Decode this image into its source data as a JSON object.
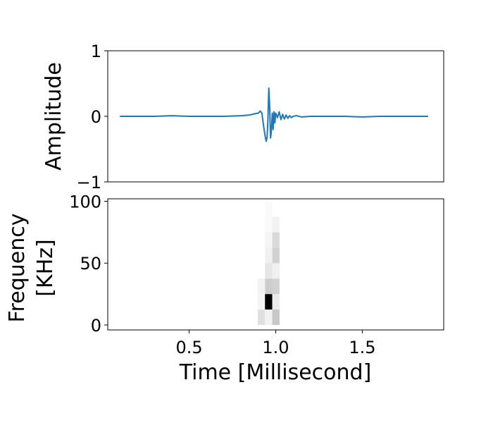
{
  "chart_data": [
    {
      "type": "line",
      "panel": "waveform",
      "title": "",
      "xlabel": "",
      "ylabel": "Amplitude",
      "xlim": [
        0.03,
        1.97
      ],
      "ylim": [
        -1,
        1
      ],
      "yticks": [
        1,
        0,
        -1
      ],
      "ytick_labels": [
        "1",
        "0",
        "−1"
      ],
      "xticks_visible": false,
      "grid": false,
      "line_color": "#1f77b4",
      "series": [
        {
          "x": [
            0.1,
            0.2,
            0.3,
            0.4,
            0.5,
            0.6,
            0.7,
            0.8,
            0.85,
            0.88,
            0.9,
            0.91,
            0.92,
            0.93,
            0.94,
            0.945,
            0.95,
            0.955,
            0.96,
            0.965,
            0.97,
            0.975,
            0.98,
            0.985,
            0.99,
            0.995,
            1.0,
            1.01,
            1.02,
            1.03,
            1.04,
            1.05,
            1.06,
            1.07,
            1.08,
            1.09,
            1.1,
            1.12,
            1.15,
            1.2,
            1.3,
            1.4,
            1.5,
            1.6,
            1.7,
            1.8,
            1.88
          ],
          "y": [
            0.0,
            0.0,
            0.0,
            0.01,
            0.0,
            0.0,
            0.0,
            0.01,
            0.02,
            0.04,
            0.05,
            0.08,
            0.05,
            -0.15,
            -0.32,
            -0.38,
            -0.32,
            -0.05,
            0.43,
            0.15,
            -0.33,
            -0.22,
            0.05,
            -0.2,
            0.07,
            -0.1,
            0.05,
            -0.02,
            0.07,
            -0.05,
            0.03,
            -0.04,
            0.02,
            -0.03,
            0.01,
            -0.02,
            0.0,
            0.01,
            -0.01,
            0.0,
            0.0,
            0.0,
            -0.01,
            0.0,
            0.0,
            0.0,
            0.0
          ]
        }
      ]
    },
    {
      "type": "heatmap",
      "panel": "spectrogram",
      "title": "",
      "xlabel": "Time [Millisecond]",
      "ylabel": "Frequency\n[KHz]",
      "ylabel_lines": [
        "Frequency",
        "[KHz]"
      ],
      "xlim": [
        0.03,
        1.97
      ],
      "ylim": [
        -4,
        102
      ],
      "xticks": [
        0.5,
        1.0,
        1.5
      ],
      "xtick_labels": [
        "0.5",
        "1.0",
        "1.5"
      ],
      "yticks": [
        100,
        50,
        0
      ],
      "ytick_labels": [
        "100",
        "50",
        "0"
      ],
      "colormap": "gray_r",
      "grid": false,
      "columns_x": [
        0.896,
        0.938,
        0.98
      ],
      "column_width": 0.042,
      "rows_y": [
        12.5,
        25,
        37.5,
        50,
        62.5,
        75,
        87.5,
        100
      ],
      "row_height": 12.5,
      "intensity": [
        [
          0.12,
          0.05,
          0.22
        ],
        [
          0.04,
          1.0,
          0.08
        ],
        [
          0.05,
          0.2,
          0.18
        ],
        [
          0.0,
          0.1,
          0.06
        ],
        [
          0.0,
          0.06,
          0.18
        ],
        [
          0.0,
          0.04,
          0.15
        ],
        [
          0.0,
          0.02,
          0.05
        ],
        [
          0.0,
          0.02,
          0.0
        ]
      ]
    }
  ]
}
